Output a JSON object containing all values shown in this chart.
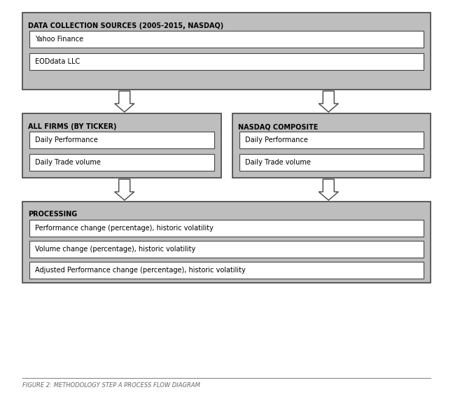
{
  "title": "FIGURE 2: METHODOLOGY STEP A PROCESS FLOW DIAGRAM",
  "background": "#ffffff",
  "box_fill_outer": "#bebebe",
  "box_fill_inner": "#ffffff",
  "box_edge": "#444444",
  "section1_title": "DATA COLLECTION SOURCES (2005-2015, NASDAQ)",
  "section1_items": [
    "Yahoo Finance",
    "EODdata LLC"
  ],
  "section2a_title": "ALL FIRMS (BY TICKER)",
  "section2a_items": [
    "Daily Performance",
    "Daily Trade volume"
  ],
  "section2b_title": "NASDAQ COMPOSITE",
  "section2b_items": [
    "Daily Performance",
    "Daily Trade volume"
  ],
  "section3_title": "PROCESSING",
  "section3_items": [
    "Performance change (percentage), historic volatility",
    "Volume change (percentage), historic volatility",
    "Adjusted Performance change (percentage), historic volatility"
  ],
  "outer_lw": 1.2,
  "inner_lw": 0.8,
  "title_fontsize": 7.0,
  "item_fontsize": 7.0,
  "caption_fontsize": 6.0
}
